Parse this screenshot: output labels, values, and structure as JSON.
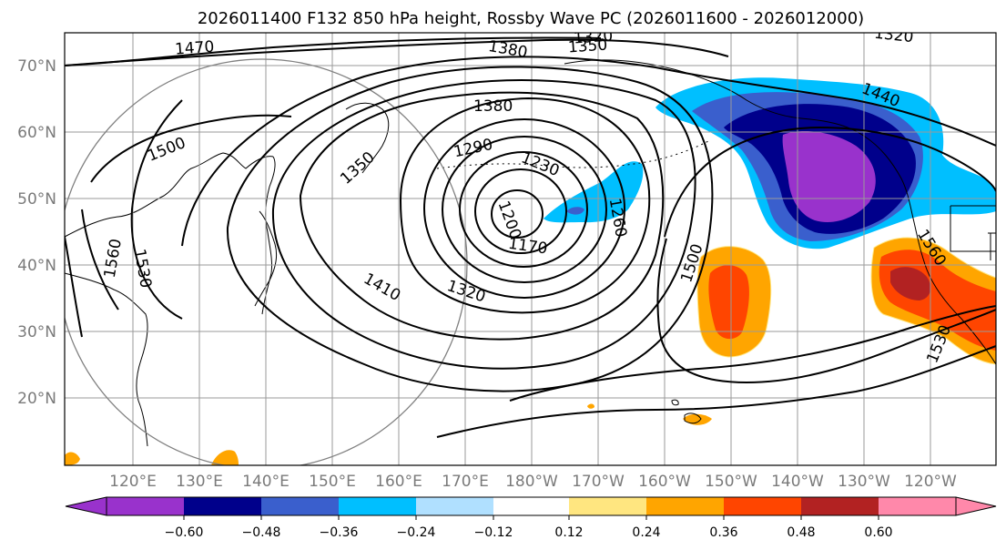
{
  "title": "2026011400 F132 850 hPa height, Rossby Wave PC (2026011600 - 2026012000)",
  "lat_ticks": [
    "70°N",
    "60°N",
    "50°N",
    "40°N",
    "30°N",
    "20°N"
  ],
  "lon_ticks": [
    "120°E",
    "130°E",
    "140°E",
    "150°E",
    "160°E",
    "170°E",
    "180°W",
    "170°W",
    "160°W",
    "150°W",
    "140°W",
    "130°W",
    "120°W"
  ],
  "contour_labels": [
    "1470",
    "1500",
    "1560",
    "1530",
    "1350",
    "1380",
    "1380",
    "1290",
    "1230",
    "1200",
    "1170",
    "1260",
    "1320",
    "1410",
    "1320",
    "1350",
    "1440",
    "1320",
    "1500",
    "1560",
    "1530"
  ],
  "colorbar": {
    "ticks": [
      "−0.60",
      "−0.48",
      "−0.36",
      "−0.24",
      "−0.12",
      "0.12",
      "0.24",
      "0.36",
      "0.48",
      "0.60"
    ],
    "colors": [
      "#9932cc",
      "#00008b",
      "#3a5fcd",
      "#00bfff",
      "#b0e0ff",
      "#ffffff",
      "#ffe680",
      "#ffa500",
      "#ff4500",
      "#b22222",
      "#ff88aa"
    ]
  },
  "palette": {
    "purple": "#9932cc",
    "navy": "#00008b",
    "royal": "#3a5fcd",
    "sky": "#00bfff",
    "pale_blue": "#b0e0ff",
    "yellow": "#ffe680",
    "orange": "#ffa500",
    "red_orange": "#ff4500",
    "dark_red": "#b22222",
    "pink": "#ff88aa",
    "grid": "#999999"
  }
}
